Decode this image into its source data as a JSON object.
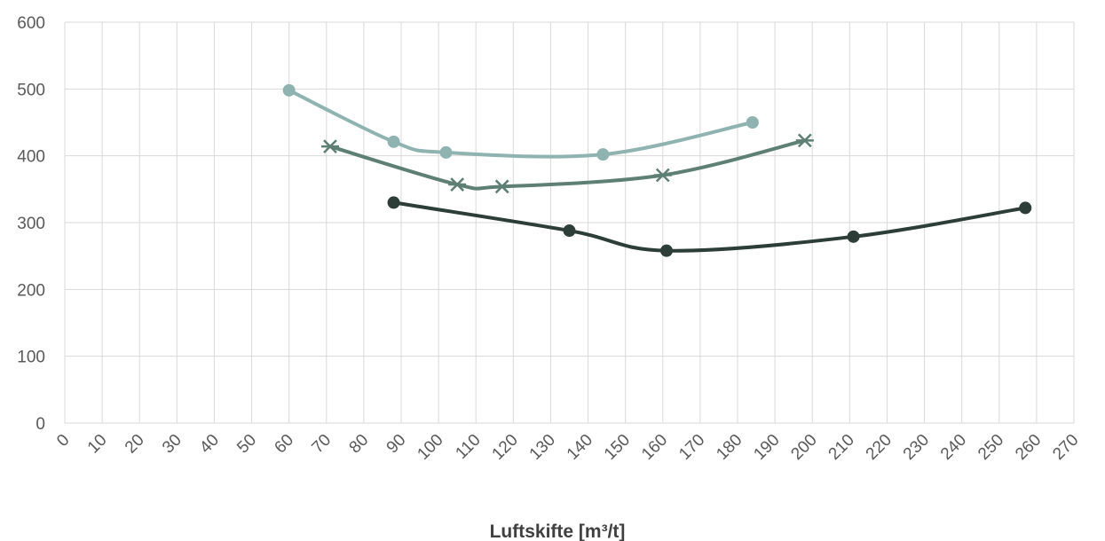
{
  "chart_data": {
    "type": "scatter",
    "title": "",
    "xlabel": "Luftskifte [m³/t]",
    "ylabel": "",
    "xlim": [
      0,
      270
    ],
    "ylim": [
      0,
      600
    ],
    "x_ticks": [
      0,
      10,
      20,
      30,
      40,
      50,
      60,
      70,
      80,
      90,
      100,
      110,
      120,
      130,
      140,
      150,
      160,
      170,
      180,
      190,
      200,
      210,
      220,
      230,
      240,
      250,
      260,
      270
    ],
    "y_ticks": [
      0,
      100,
      200,
      300,
      400,
      500,
      600
    ],
    "grid": "both",
    "legend": "none",
    "series": [
      {
        "marker": "circle",
        "color": "#8fb3b0",
        "smooth": true,
        "points": [
          [
            60,
            498
          ],
          [
            88,
            421
          ],
          [
            102,
            405
          ],
          [
            144,
            402
          ],
          [
            184,
            450
          ]
        ]
      },
      {
        "marker": "asterisk",
        "color": "#5e7f73",
        "smooth": true,
        "points": [
          [
            71,
            414
          ],
          [
            105,
            357
          ],
          [
            117,
            354
          ],
          [
            160,
            371
          ],
          [
            198,
            423
          ]
        ]
      },
      {
        "marker": "circle",
        "color": "#2c3e37",
        "smooth": true,
        "points": [
          [
            88,
            330
          ],
          [
            135,
            288
          ],
          [
            161,
            258
          ],
          [
            211,
            279
          ],
          [
            257,
            322
          ]
        ]
      }
    ]
  }
}
